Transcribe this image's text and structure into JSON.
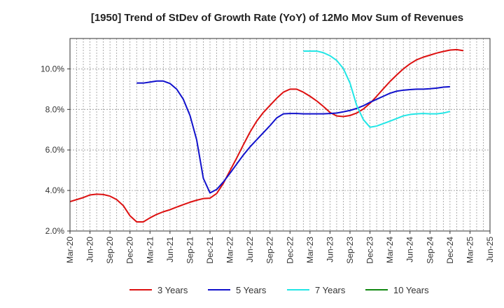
{
  "chart_data": {
    "type": "line",
    "title": "[1950]  Trend of StDev of Growth Rate (YoY) of 12Mo Mov Sum of Revenues",
    "xlabel": "",
    "ylabel": "",
    "ylim": [
      2.0,
      11.5
    ],
    "y_ticks": [
      "2.0%",
      "4.0%",
      "6.0%",
      "8.0%",
      "10.0%"
    ],
    "y_tick_values": [
      2,
      4,
      6,
      8,
      10
    ],
    "x_ticks": [
      "Mar-20",
      "Jun-20",
      "Sep-20",
      "Dec-20",
      "Mar-21",
      "Jun-21",
      "Sep-21",
      "Dec-21",
      "Mar-22",
      "Jun-22",
      "Sep-22",
      "Dec-22",
      "Mar-23",
      "Jun-23",
      "Sep-23",
      "Dec-23",
      "Mar-24",
      "Jun-24",
      "Sep-24",
      "Dec-24",
      "Mar-25",
      "Jun-25"
    ],
    "grid": true,
    "legend_position": "bottom",
    "series": [
      {
        "name": "3 Years",
        "color": "#dd1111",
        "start_index": 0,
        "values": [
          3.45,
          3.55,
          3.65,
          3.78,
          3.82,
          3.8,
          3.72,
          3.55,
          3.25,
          2.75,
          2.45,
          2.45,
          2.65,
          2.82,
          2.95,
          3.05,
          3.18,
          3.3,
          3.42,
          3.52,
          3.6,
          3.62,
          3.85,
          4.35,
          4.98,
          5.6,
          6.25,
          6.88,
          7.42,
          7.85,
          8.2,
          8.55,
          8.85,
          9.0,
          9.0,
          8.85,
          8.65,
          8.42,
          8.15,
          7.85,
          7.68,
          7.65,
          7.7,
          7.82,
          8.02,
          8.3,
          8.65,
          9.02,
          9.38,
          9.7,
          10.0,
          10.25,
          10.45,
          10.58,
          10.68,
          10.78,
          10.86,
          10.93,
          10.95,
          10.9
        ]
      },
      {
        "name": "5 Years",
        "color": "#1111cc",
        "start_index": 10,
        "values": [
          9.3,
          9.3,
          9.35,
          9.4,
          9.4,
          9.28,
          9.0,
          8.5,
          7.7,
          6.5,
          4.6,
          3.88,
          4.05,
          4.42,
          4.85,
          5.3,
          5.75,
          6.15,
          6.5,
          6.85,
          7.2,
          7.58,
          7.78,
          7.8,
          7.8,
          7.78,
          7.78,
          7.78,
          7.78,
          7.8,
          7.82,
          7.88,
          7.95,
          8.05,
          8.18,
          8.35,
          8.5,
          8.65,
          8.8,
          8.9,
          8.95,
          8.98,
          9.0,
          9.0,
          9.02,
          9.05,
          9.1,
          9.12
        ]
      },
      {
        "name": "7 Years",
        "color": "#22e6e6",
        "start_index": 35,
        "values": [
          10.88,
          10.88,
          10.88,
          10.8,
          10.65,
          10.42,
          10.02,
          9.3,
          8.2,
          7.5,
          7.12,
          7.18,
          7.3,
          7.42,
          7.55,
          7.68,
          7.75,
          7.78,
          7.8,
          7.78,
          7.78,
          7.82,
          7.9
        ]
      },
      {
        "name": "10 Years",
        "color": "#118811",
        "start_index": 0,
        "values": []
      }
    ]
  }
}
